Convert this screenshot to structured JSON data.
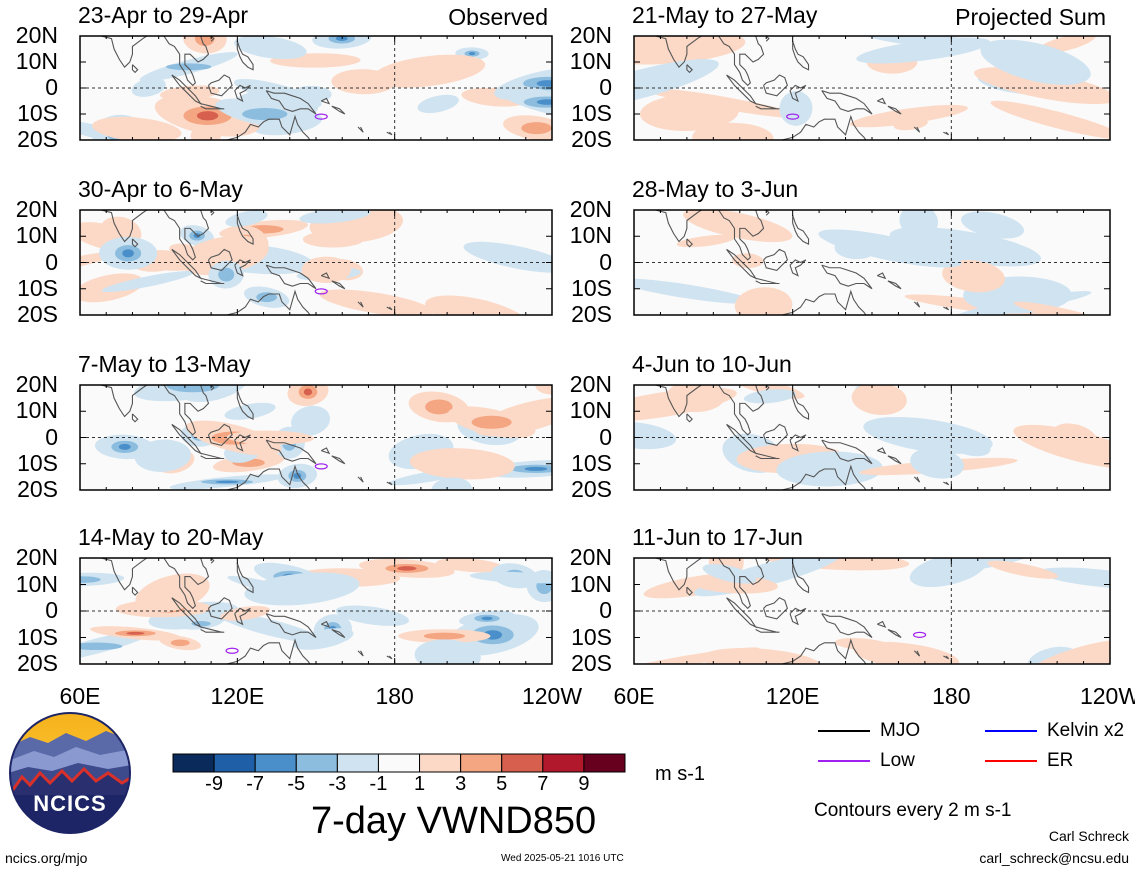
{
  "chart_data": {
    "type": "heatmap",
    "variable_title": "7-day VWND850",
    "units": "m s-1",
    "column_labels": [
      "Observed",
      "Projected Sum"
    ],
    "lat_ticks": [
      "20N",
      "10N",
      "0",
      "10S",
      "20S"
    ],
    "lon_ticks": [
      "60E",
      "120E",
      "180",
      "120W"
    ],
    "panels": [
      {
        "label": "23-Apr to 29-Apr",
        "column": "Observed"
      },
      {
        "label": "30-Apr to 6-May",
        "column": "Observed"
      },
      {
        "label": "7-May to 13-May",
        "column": "Observed"
      },
      {
        "label": "14-May to 20-May",
        "column": "Observed"
      },
      {
        "label": "21-May to 27-May",
        "column": "Projected Sum"
      },
      {
        "label": "28-May to 3-Jun",
        "column": "Projected Sum"
      },
      {
        "label": "4-Jun to 10-Jun",
        "column": "Projected Sum"
      },
      {
        "label": "11-Jun to 17-Jun",
        "column": "Projected Sum"
      }
    ],
    "colorbar": {
      "ticks": [
        "-9",
        "-7",
        "-5",
        "-3",
        "-1",
        "1",
        "3",
        "5",
        "7",
        "9"
      ],
      "colors": [
        "#0a2a5c",
        "#1f5fa8",
        "#4a8fc9",
        "#8cbddf",
        "#cfe3f1",
        "#fafafa",
        "#fcd9c6",
        "#f4a582",
        "#d6604d",
        "#b2182b",
        "#67001f"
      ]
    },
    "contour_legend": [
      {
        "label": "MJO",
        "color": "#000000"
      },
      {
        "label": "Kelvin x2",
        "color": "#0000ff"
      },
      {
        "label": "Low",
        "color": "#a020f0"
      },
      {
        "label": "ER",
        "color": "#ff0000"
      }
    ],
    "contour_note": "Contours every 2 m s-1"
  },
  "logo": {
    "text": "NCICS"
  },
  "footer": {
    "left": "ncics.org/mjo",
    "center": "Wed 2025-05-21 1016 UTC",
    "author": "Carl Schreck",
    "email": "carl_schreck@ncsu.edu"
  }
}
